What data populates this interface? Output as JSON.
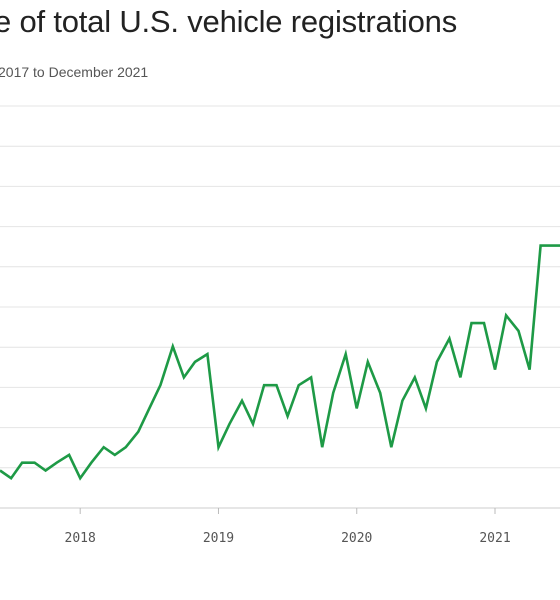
{
  "chart_data": {
    "type": "line",
    "title": "e of total U.S. vehicle registrations",
    "subtitle": "2017 to December 2021",
    "x_tick_labels": [
      "2018",
      "2019",
      "2020",
      "2021"
    ],
    "x_ticks": [
      2018,
      2019,
      2020,
      2021
    ],
    "xlim": [
      2017.42,
      2021.47
    ],
    "y_gridlines": 11,
    "grid": true,
    "color": "#1e9a46",
    "series": [
      {
        "x": [
          2017.42,
          2017.5,
          2017.58,
          2017.67,
          2017.75,
          2017.83,
          2017.92,
          2018.0,
          2018.08,
          2018.17,
          2018.25,
          2018.33,
          2018.42,
          2018.5,
          2018.58,
          2018.67,
          2018.75,
          2018.83,
          2018.92,
          2019.0,
          2019.08,
          2019.17,
          2019.25,
          2019.33,
          2019.42,
          2019.5,
          2019.58,
          2019.67,
          2019.75,
          2019.83,
          2019.92,
          2020.0,
          2020.08,
          2020.17,
          2020.25,
          2020.33,
          2020.42,
          2020.5,
          2020.58,
          2020.67,
          2020.75,
          2020.83,
          2020.92,
          2021.0,
          2021.08,
          2021.17,
          2021.25,
          2021.33,
          2021.42,
          2021.47
        ],
        "y": [
          1.05,
          1.0,
          1.1,
          1.1,
          1.05,
          1.1,
          1.15,
          1.0,
          1.1,
          1.2,
          1.15,
          1.2,
          1.3,
          1.45,
          1.6,
          1.85,
          1.65,
          1.75,
          1.8,
          1.2,
          1.35,
          1.5,
          1.35,
          1.6,
          1.6,
          1.4,
          1.6,
          1.65,
          1.2,
          1.55,
          1.8,
          1.45,
          1.75,
          1.55,
          1.2,
          1.5,
          1.65,
          1.45,
          1.75,
          1.9,
          1.65,
          2.0,
          2.0,
          1.7,
          2.05,
          1.95,
          1.7,
          2.5,
          2.5,
          2.5
        ]
      }
    ]
  }
}
